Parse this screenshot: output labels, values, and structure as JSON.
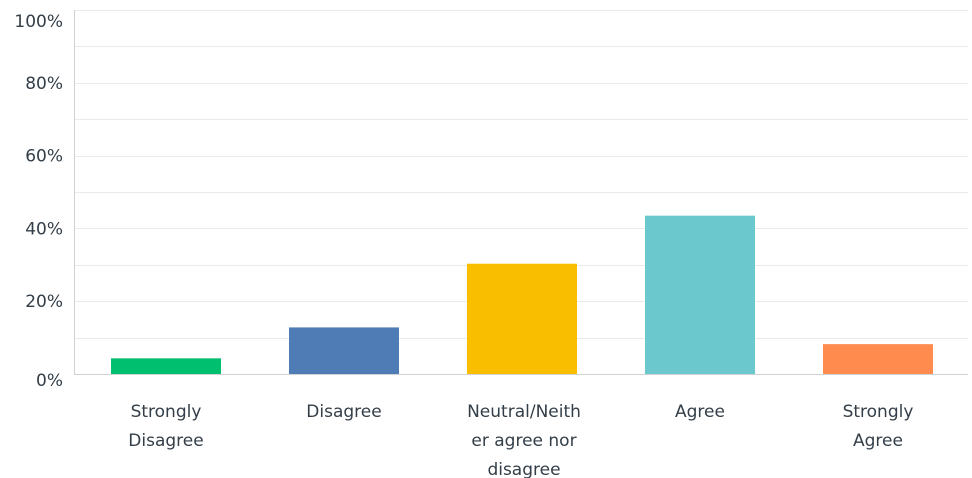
{
  "chart_data": {
    "type": "bar",
    "categories": [
      [
        "Strongly",
        "Disagree"
      ],
      [
        "Disagree"
      ],
      [
        "Neutral/Neith",
        "er agree nor",
        "disagree"
      ],
      [
        "Agree"
      ],
      [
        "Strongly",
        "Agree"
      ]
    ],
    "values": [
      4.3,
      12.8,
      30.3,
      43.5,
      8.2
    ],
    "colors": [
      "#00bf6f",
      "#507cb6",
      "#f9be00",
      "#6bc8cd",
      "#ff8b4f"
    ],
    "ylim": [
      0,
      100
    ],
    "y_ticks": [
      0,
      20,
      40,
      60,
      80,
      100
    ],
    "y_tick_labels": [
      "0%",
      "20%",
      "40%",
      "60%",
      "80%",
      "100%"
    ],
    "minor_gridlines": [
      10,
      30,
      50,
      70,
      90
    ],
    "grid": true,
    "legend": "none",
    "title": "",
    "xlabel": "",
    "ylabel": ""
  }
}
